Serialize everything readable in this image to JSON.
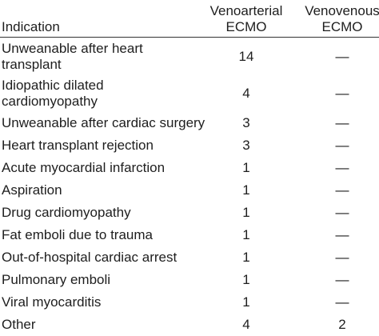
{
  "table": {
    "header": [
      [
        "Indication"
      ],
      [
        "Venoarterial",
        "ECMO"
      ],
      [
        "Venovenous",
        "ECMO"
      ]
    ],
    "rows": [
      [
        [
          "Unweanable after heart",
          "transplant"
        ],
        "14",
        "—"
      ],
      [
        [
          "Idiopathic dilated",
          "cardiomyopathy"
        ],
        "4",
        "—"
      ],
      [
        [
          "Unweanable after cardiac surgery"
        ],
        "3",
        "—"
      ],
      [
        [
          "Heart transplant rejection"
        ],
        "3",
        "—"
      ],
      [
        [
          "Acute myocardial infarction"
        ],
        "1",
        "—"
      ],
      [
        [
          "Aspiration"
        ],
        "1",
        "—"
      ],
      [
        [
          "Drug cardiomyopathy"
        ],
        "1",
        "—"
      ],
      [
        [
          "Fat emboli due to trauma"
        ],
        "1",
        "—"
      ],
      [
        [
          "Out-of-hospital cardiac arrest"
        ],
        "1",
        "—"
      ],
      [
        [
          "Pulmonary emboli"
        ],
        "1",
        "—"
      ],
      [
        [
          "Viral myocarditis"
        ],
        "1",
        "—"
      ],
      [
        [
          "Other"
        ],
        "4",
        "2"
      ]
    ]
  }
}
